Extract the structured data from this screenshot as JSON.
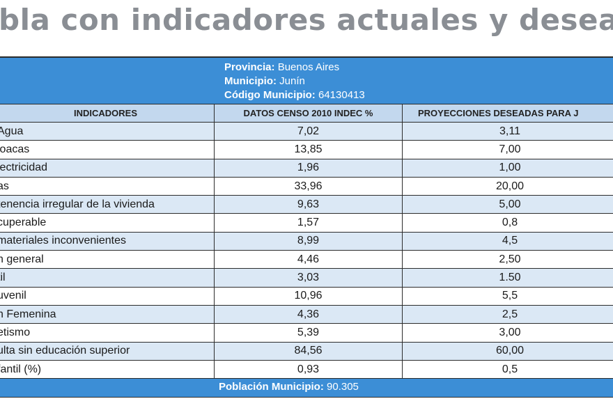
{
  "title": "bla con indicadores actuales y deseado",
  "header": {
    "provincia_label": "Provincia:",
    "provincia_value": "Buenos Aires",
    "municipio_label": "Municipio:",
    "municipio_value": "Junín",
    "codigo_label": "Código Municipio:",
    "codigo_value": "64130413"
  },
  "columns": [
    "INDICADORES",
    "DATOS CENSO 2010 INDEC %",
    "PROYECCIONES DESEADAS PARA J"
  ],
  "rows": [
    {
      "indicador": "Agua",
      "censo": "7,02",
      "proyeccion": "3,11"
    },
    {
      "indicador": "loacas",
      "censo": "13,85",
      "proyeccion": "7,00"
    },
    {
      "indicador": "lectricidad",
      "censo": "1,96",
      "proyeccion": "1,00"
    },
    {
      "indicador": "as",
      "censo": "33,96",
      "proyeccion": "20,00"
    },
    {
      "indicador": "tenencia irregular de la vivienda",
      "censo": "9,63",
      "proyeccion": "5,00"
    },
    {
      "indicador": "cuperable",
      "censo": "1,57",
      "proyeccion": "0,8"
    },
    {
      "indicador": "materiales inconvenientes",
      "censo": "8,99",
      "proyeccion": "4,5"
    },
    {
      "indicador": "n general",
      "censo": "4,46",
      "proyeccion": "2,50"
    },
    {
      "indicador": "til",
      "censo": "3,03",
      "proyeccion": "1.50"
    },
    {
      "indicador": "uvenil",
      "censo": "10,96",
      "proyeccion": "5,5"
    },
    {
      "indicador": "n Femenina",
      "censo": "4,36",
      "proyeccion": "2,5"
    },
    {
      "indicador": "etismo",
      "censo": "5,39",
      "proyeccion": "3,00"
    },
    {
      "indicador": "ulta  sin educación superior",
      "censo": "84,56",
      "proyeccion": "60,00"
    },
    {
      "indicador": "fantil (%)",
      "censo": "0,93",
      "proyeccion": "0,5"
    }
  ],
  "footer": {
    "poblacion_label": "Población Municipio:",
    "poblacion_value": "90.305"
  }
}
